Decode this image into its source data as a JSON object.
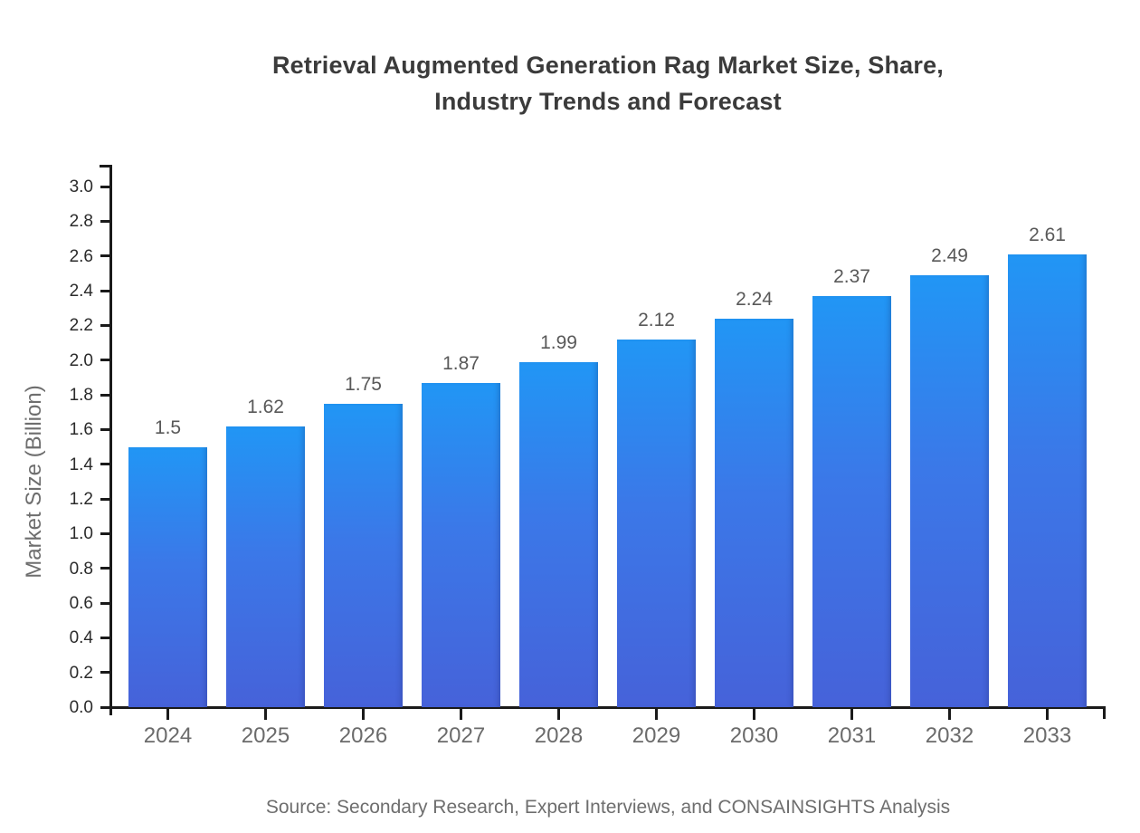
{
  "title": {
    "line1": "Retrieval Augmented Generation Rag Market Size, Share,",
    "line2": "Industry Trends and Forecast"
  },
  "source": "Source: Secondary Research, Expert Interviews, and CONSAINSIGHTS Analysis",
  "colors": {
    "bar_gradient_top": "#2196f5",
    "bar_gradient_bottom": "#4662d9",
    "axis": "#1a1a1a",
    "title_text": "#3b3b3b",
    "tick_text": "#2b2b2b",
    "category_text": "#6b6b6b",
    "value_label_text": "#595959",
    "muted_text": "#6e6e6e"
  },
  "chart_data": {
    "type": "bar",
    "title": "Retrieval Augmented Generation Rag Market Size, Share, Industry Trends and Forecast",
    "categories": [
      "2024",
      "2025",
      "2026",
      "2027",
      "2028",
      "2029",
      "2030",
      "2031",
      "2032",
      "2033"
    ],
    "values": [
      1.5,
      1.62,
      1.75,
      1.87,
      1.99,
      2.12,
      2.24,
      2.37,
      2.49,
      2.61
    ],
    "value_labels": [
      "1.5",
      "1.62",
      "1.75",
      "1.87",
      "1.99",
      "2.12",
      "2.24",
      "2.37",
      "2.49",
      "2.61"
    ],
    "xlabel": "",
    "ylabel": "Market Size (Billion)",
    "ylim": [
      0,
      3.0
    ],
    "ytick_step": 0.2,
    "ytick_labels": [
      "0.0",
      "0.2",
      "0.4",
      "0.6",
      "0.8",
      "1.0",
      "1.2",
      "1.4",
      "1.6",
      "1.8",
      "2.0",
      "2.2",
      "2.4",
      "2.6",
      "2.8",
      "3.0"
    ],
    "grid": false,
    "legend": false
  }
}
